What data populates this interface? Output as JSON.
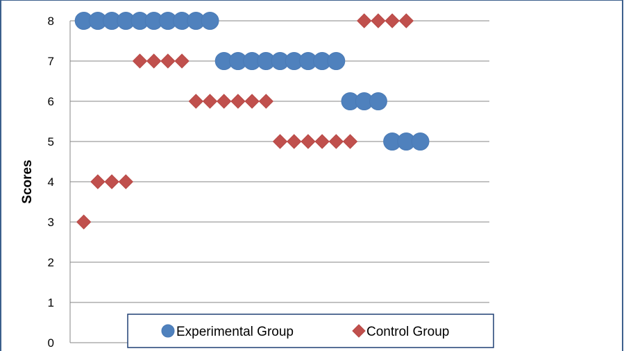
{
  "chart_data": {
    "type": "scatter",
    "title": "",
    "xlabel": "",
    "ylabel": "Scores",
    "ylim": [
      0,
      8
    ],
    "yticks": [
      "0",
      "1",
      "2",
      "3",
      "4",
      "5",
      "6",
      "7",
      "8"
    ],
    "grid": true,
    "legend_position": "bottom",
    "series": [
      {
        "name": "Experimental Group",
        "marker": "circle",
        "color": "#4f81bd",
        "points": [
          {
            "x": 1,
            "y": 8
          },
          {
            "x": 2,
            "y": 8
          },
          {
            "x": 3,
            "y": 8
          },
          {
            "x": 4,
            "y": 8
          },
          {
            "x": 5,
            "y": 8
          },
          {
            "x": 6,
            "y": 8
          },
          {
            "x": 7,
            "y": 8
          },
          {
            "x": 8,
            "y": 8
          },
          {
            "x": 9,
            "y": 8
          },
          {
            "x": 10,
            "y": 8
          },
          {
            "x": 11,
            "y": 7
          },
          {
            "x": 12,
            "y": 7
          },
          {
            "x": 13,
            "y": 7
          },
          {
            "x": 14,
            "y": 7
          },
          {
            "x": 15,
            "y": 7
          },
          {
            "x": 16,
            "y": 7
          },
          {
            "x": 17,
            "y": 7
          },
          {
            "x": 18,
            "y": 7
          },
          {
            "x": 19,
            "y": 7
          },
          {
            "x": 20,
            "y": 6
          },
          {
            "x": 21,
            "y": 6
          },
          {
            "x": 22,
            "y": 6
          },
          {
            "x": 23,
            "y": 5
          },
          {
            "x": 24,
            "y": 5
          },
          {
            "x": 25,
            "y": 5
          }
        ]
      },
      {
        "name": "Control Group",
        "marker": "diamond",
        "color": "#c0504d",
        "points": [
          {
            "x": 1,
            "y": 3
          },
          {
            "x": 2,
            "y": 4
          },
          {
            "x": 3,
            "y": 4
          },
          {
            "x": 4,
            "y": 4
          },
          {
            "x": 5,
            "y": 7
          },
          {
            "x": 6,
            "y": 7
          },
          {
            "x": 7,
            "y": 7
          },
          {
            "x": 8,
            "y": 7
          },
          {
            "x": 9,
            "y": 6
          },
          {
            "x": 10,
            "y": 6
          },
          {
            "x": 11,
            "y": 6
          },
          {
            "x": 12,
            "y": 6
          },
          {
            "x": 13,
            "y": 6
          },
          {
            "x": 14,
            "y": 6
          },
          {
            "x": 15,
            "y": 5
          },
          {
            "x": 16,
            "y": 5
          },
          {
            "x": 17,
            "y": 5
          },
          {
            "x": 18,
            "y": 5
          },
          {
            "x": 19,
            "y": 5
          },
          {
            "x": 20,
            "y": 5
          },
          {
            "x": 21,
            "y": 8
          },
          {
            "x": 22,
            "y": 8
          },
          {
            "x": 23,
            "y": 8
          },
          {
            "x": 24,
            "y": 8
          }
        ]
      }
    ]
  }
}
